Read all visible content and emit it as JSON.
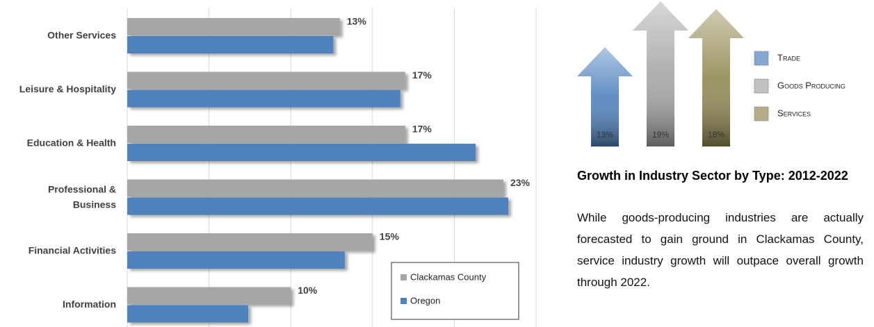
{
  "chart_data": [
    {
      "type": "bar",
      "categories": [
        "Other Services",
        "Leisure & Hospitality",
        "Education & Health",
        "Professional & Business",
        "Financial Activities",
        "Information"
      ],
      "series": [
        {
          "name": "Clackamas County",
          "color": "#a6a6a6",
          "values": [
            13,
            17,
            17,
            23,
            15,
            10
          ],
          "value_labels": [
            "13%",
            "17%",
            "17%",
            "23%",
            "15%",
            "10%"
          ]
        },
        {
          "name": "Oregon",
          "color": "#4f81bd",
          "values": [
            12.6,
            16.7,
            21.3,
            23.3,
            13.3,
            7.4
          ]
        }
      ],
      "xlim": [
        0,
        25
      ],
      "xticks": [
        0,
        5,
        10,
        15,
        20,
        25
      ],
      "grid": true,
      "legend": "lower right"
    },
    {
      "type": "arrow",
      "categories": [
        "Trade",
        "Goods Producing",
        "Services"
      ],
      "values": [
        13,
        19,
        18
      ],
      "value_labels": [
        "13%",
        "19%",
        "18%"
      ],
      "colors": [
        "#4f81bd",
        "#a6a6a6",
        "#948a54"
      ]
    }
  ],
  "article": {
    "heading": "Growth in Industry Sector by Type: 2012-2022",
    "body": "While goods-producing industries are actually forecasted to gain ground in Clackamas County, service industry growth will outpace overall growth through 2022."
  }
}
